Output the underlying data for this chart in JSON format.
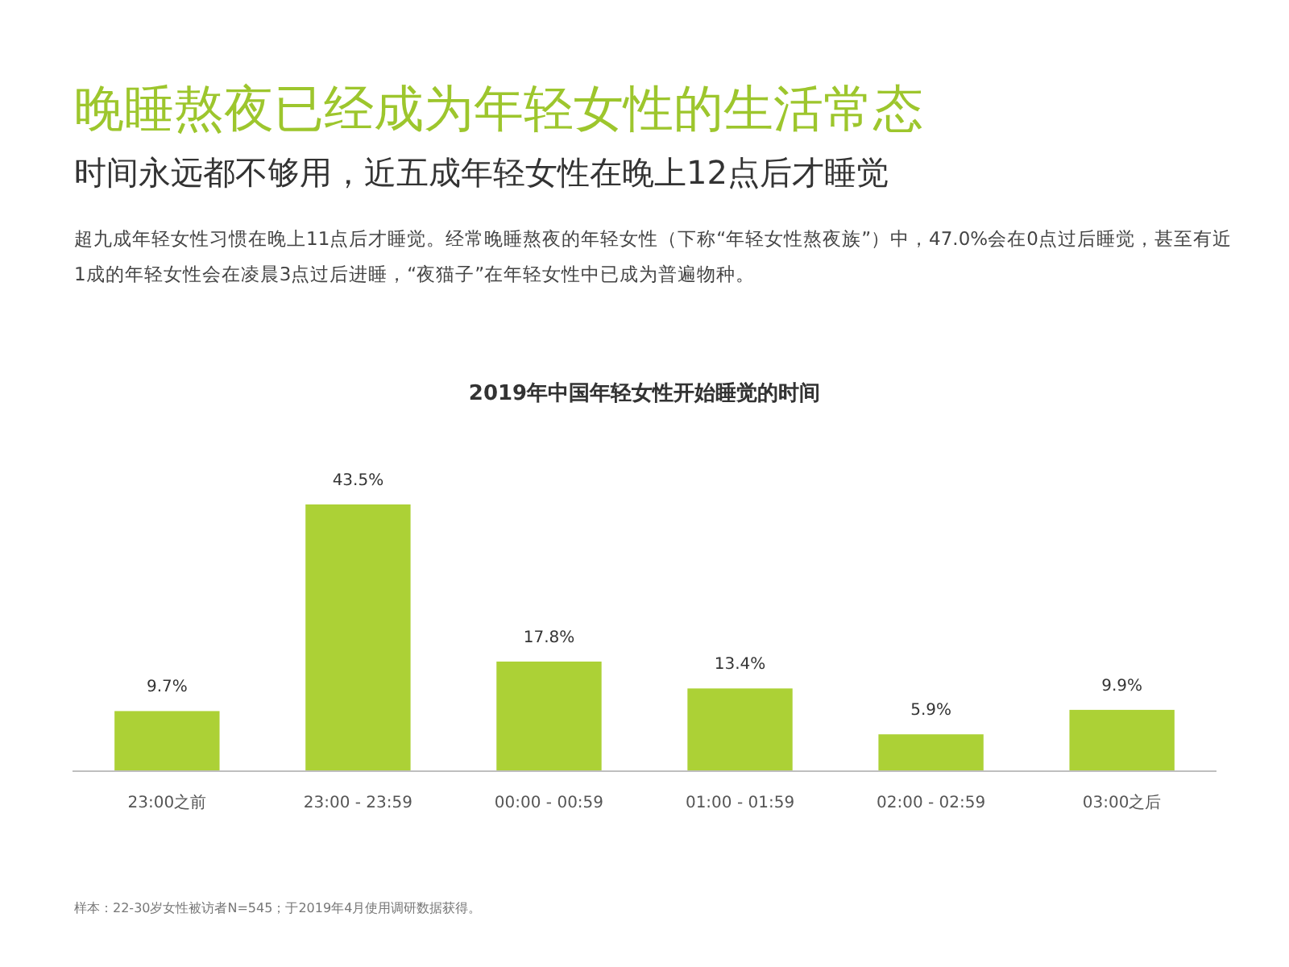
{
  "chart_data": {
    "type": "bar",
    "title": "晚睡熬夜已经成为年轻女性的生活常态",
    "subtitle": "时间永远都不够用，近五成年轻女性在晚上12点后才睡觉",
    "annotations": [
      "超九成年轻女性习惯在晚上11点后才睡觉。经常晚睡熬夜的年轻女性（下称“年轻女性熬夜族”）中，47.0%会在0点过后睡觉，甚至有近1成的年轻女性会在凌晨3点过后进睡，“夜猫子”在年轻女性中已成为普遍物种。",
      "2019年中国年轻女性开始睡觉的时间",
      "样本：22-30岁女性被访者N=545；于2019年4月使用调研数据获得。"
    ],
    "categories": [
      "23:00之前",
      "23:00 - 23:59",
      "00:00 - 00:59",
      "01:00 - 01:59",
      "02:00 - 02:59",
      "03:00之后"
    ],
    "values": [
      9.7,
      43.5,
      17.8,
      13.4,
      5.9,
      9.9
    ],
    "value_labels": [
      "9.7%",
      "43.5%",
      "17.8%",
      "13.4%",
      "5.9%",
      "9.9%"
    ],
    "color": "#acd136"
  }
}
